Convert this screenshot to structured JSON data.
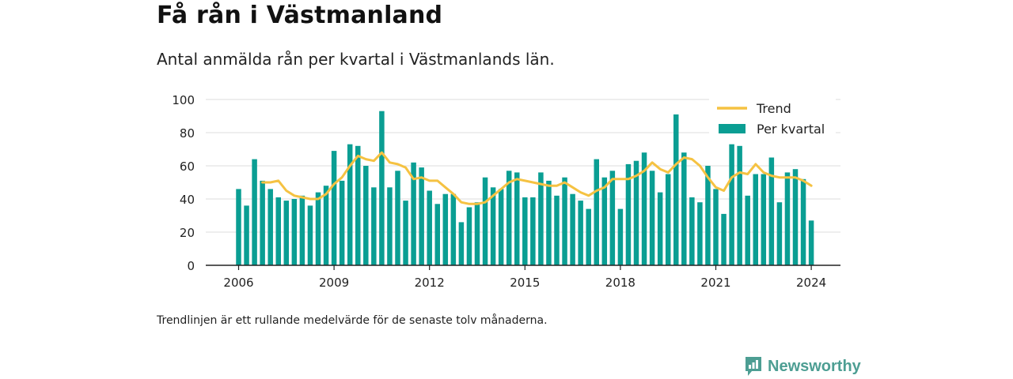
{
  "header": {
    "title": "Få rån i Västmanland",
    "subtitle": "Antal anmälda rån per kvartal i Västmanlands län."
  },
  "footer": {
    "note": "Trendlinjen är ett rullande medelvärde för de senaste tolv månaderna.",
    "brand": "Newsworthy",
    "brand_icon": "newsworthy-logo-icon"
  },
  "colors": {
    "bar": "#0a9e93",
    "trend": "#f5c242",
    "grid": "#dddddd",
    "axis": "#222222",
    "brand": "#4d9e93"
  },
  "chart_data": {
    "type": "bar",
    "x_unit": "quarter",
    "x_start": "2006-Q1",
    "ylim": [
      0,
      100
    ],
    "yticks": [
      0,
      20,
      40,
      60,
      80,
      100
    ],
    "xticks": [
      "2006",
      "2009",
      "2012",
      "2015",
      "2018",
      "2021",
      "2024"
    ],
    "grid": true,
    "legend_position": "top-right",
    "series": [
      {
        "name": "Per kvartal",
        "kind": "bar",
        "values": [
          46,
          36,
          64,
          51,
          46,
          41,
          39,
          40,
          42,
          36,
          44,
          48,
          69,
          51,
          73,
          72,
          60,
          47,
          93,
          47,
          57,
          39,
          62,
          59,
          45,
          37,
          43,
          43,
          26,
          35,
          38,
          53,
          47,
          46,
          57,
          56,
          41,
          41,
          56,
          51,
          42,
          53,
          43,
          39,
          34,
          64,
          53,
          57,
          34,
          61,
          63,
          68,
          57,
          44,
          55,
          91,
          68,
          41,
          38,
          60,
          46,
          31,
          73,
          72,
          42,
          55,
          55,
          65,
          38,
          56,
          58,
          52,
          27
        ]
      },
      {
        "name": "Trend",
        "kind": "line",
        "values": [
          null,
          null,
          null,
          50,
          50,
          51,
          45,
          42,
          41,
          40,
          40,
          43,
          49,
          53,
          60,
          66,
          64,
          63,
          68,
          62,
          61,
          59,
          52,
          53,
          51,
          51,
          47,
          43,
          38,
          37,
          37,
          38,
          42,
          46,
          50,
          52,
          51,
          50,
          49,
          48,
          48,
          50,
          47,
          44,
          42,
          45,
          47,
          52,
          52,
          52,
          54,
          57,
          62,
          58,
          56,
          61,
          65,
          64,
          60,
          53,
          47,
          45,
          53,
          56,
          55,
          61,
          56,
          54,
          53,
          53,
          53,
          51,
          48
        ]
      }
    ]
  }
}
